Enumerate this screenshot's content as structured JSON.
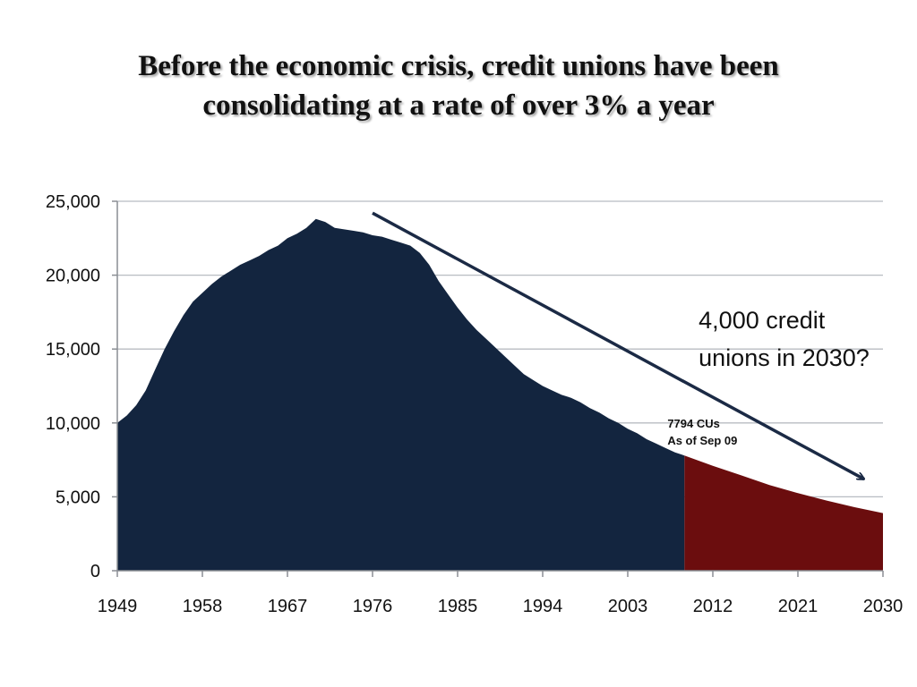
{
  "slide": {
    "title_line1": "Before the economic crisis, credit unions have been",
    "title_line2": "consolidating at a rate of over 3% a year"
  },
  "colors": {
    "actual_fill": "#13253f",
    "projection_fill": "#6b0d0e",
    "arrow": "#1b2a45",
    "grid": "#b8bcc2"
  },
  "chart_data": {
    "type": "area",
    "xlim": [
      1949,
      2030
    ],
    "ylim": [
      0,
      25000
    ],
    "x_ticks": [
      "1949",
      "1958",
      "1967",
      "1976",
      "1985",
      "1994",
      "2003",
      "2012",
      "2021",
      "2030"
    ],
    "y_ticks": [
      "0",
      "5,000",
      "10,000",
      "15,000",
      "20,000",
      "25,000"
    ],
    "y_tick_values": [
      0,
      5000,
      10000,
      15000,
      20000,
      25000
    ],
    "grid": "horizontal",
    "series": [
      {
        "key": "actual",
        "x": [
          1949,
          1950,
          1951,
          1952,
          1953,
          1954,
          1955,
          1956,
          1957,
          1958,
          1959,
          1960,
          1961,
          1962,
          1963,
          1964,
          1965,
          1966,
          1967,
          1968,
          1969,
          1970,
          1971,
          1972,
          1973,
          1974,
          1975,
          1976,
          1977,
          1978,
          1979,
          1980,
          1981,
          1982,
          1983,
          1984,
          1985,
          1986,
          1987,
          1988,
          1989,
          1990,
          1991,
          1992,
          1993,
          1994,
          1995,
          1996,
          1997,
          1998,
          1999,
          2000,
          2001,
          2002,
          2003,
          2004,
          2005,
          2006,
          2007,
          2008,
          2009
        ],
        "values": [
          10000,
          10500,
          11200,
          12200,
          13600,
          15000,
          16200,
          17300,
          18200,
          18800,
          19400,
          19900,
          20300,
          20700,
          21000,
          21300,
          21700,
          22000,
          22500,
          22800,
          23200,
          23800,
          23600,
          23200,
          23100,
          23000,
          22900,
          22700,
          22600,
          22400,
          22200,
          22000,
          21500,
          20700,
          19600,
          18700,
          17800,
          17000,
          16300,
          15700,
          15100,
          14500,
          13900,
          13300,
          12900,
          12500,
          12200,
          11900,
          11700,
          11400,
          11000,
          10700,
          10300,
          10000,
          9600,
          9300,
          8900,
          8600,
          8300,
          8000,
          7794
        ]
      },
      {
        "key": "projection",
        "x": [
          2009,
          2012,
          2015,
          2018,
          2021,
          2024,
          2027,
          2030
        ],
        "values": [
          7794,
          7100,
          6450,
          5800,
          5250,
          4750,
          4300,
          3900
        ]
      }
    ],
    "annotations": {
      "projection_line1": "4,000 credit",
      "projection_line2": "unions in 2030?",
      "current_line1": "7794 CUs",
      "current_line2": "As of Sep 09"
    }
  }
}
